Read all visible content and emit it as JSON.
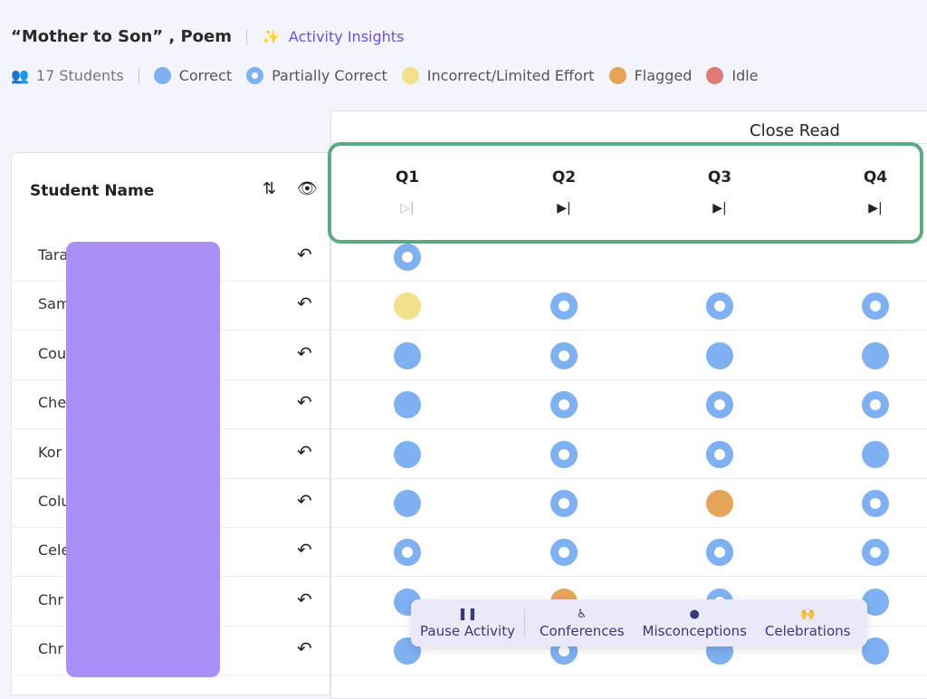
{
  "header": {
    "title": "“Mother to Son” , Poem",
    "insights_label": "Activity Insights"
  },
  "legend": {
    "students": "17 Students",
    "items": [
      "Correct",
      "Partially Correct",
      "Incorrect/Limited Effort",
      "Flagged",
      "Idle"
    ],
    "colors": {
      "correct": "#7eb0f2",
      "incorrect": "#f2e08a",
      "flagged": "#e4a559",
      "idle": "#e07a74"
    }
  },
  "table": {
    "section": "Close Read",
    "student_header": "Student Name",
    "questions": [
      "Q1",
      "Q2",
      "Q3",
      "Q4"
    ],
    "rows": [
      {
        "name": "Tara",
        "status": [
          "p",
          "",
          "",
          ""
        ]
      },
      {
        "name": "Sam",
        "status": [
          "i",
          "p",
          "p",
          "p"
        ]
      },
      {
        "name": "Cou",
        "status": [
          "c",
          "p",
          "c",
          "c"
        ]
      },
      {
        "name": "Che",
        "status": [
          "c",
          "p",
          "p",
          "p"
        ]
      },
      {
        "name": "Kor",
        "status": [
          "c",
          "p",
          "p",
          "c"
        ]
      },
      {
        "name": "Colu",
        "status": [
          "c",
          "p",
          "f",
          "p"
        ]
      },
      {
        "name": "Cele",
        "status": [
          "p",
          "p",
          "p",
          "p"
        ]
      },
      {
        "name": "Chr",
        "status": [
          "c",
          "f",
          "p",
          "c"
        ]
      },
      {
        "name": "Chr",
        "status": [
          "c",
          "p",
          "c",
          "c"
        ]
      }
    ]
  },
  "toolbar": {
    "pause": "Pause Activity",
    "conferences": "Conferences",
    "misconceptions": "Misconceptions",
    "celebrations": "Celebrations"
  }
}
